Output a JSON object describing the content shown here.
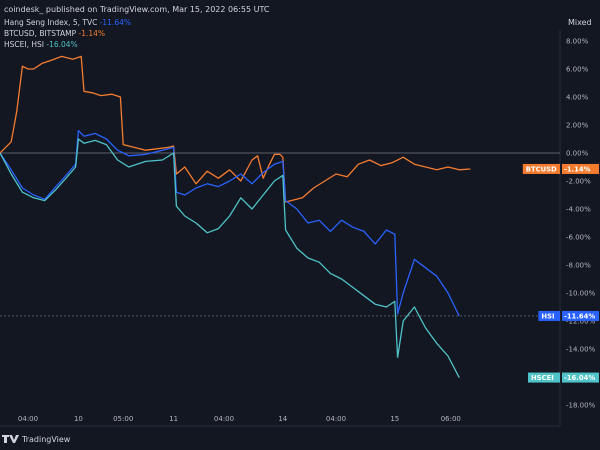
{
  "header": {
    "publisher_line": "coindesk_ published on TradingView.com, Mar 15, 2022 06:55 UTC",
    "scale_mode": "Mixed"
  },
  "branding": {
    "logo_text": "TradingView"
  },
  "colors": {
    "background": "#131722",
    "hsi": "#2962ff",
    "btc": "#f57c2f",
    "hscei": "#4fc3c9",
    "text": "#d1d4dc",
    "muted": "#b2b5be"
  },
  "chart_data": {
    "type": "line",
    "title": "",
    "ylabel_unit": "%",
    "ylim": [
      -18,
      9
    ],
    "y_ticks": [
      "8.00%",
      "6.00%",
      "4.00%",
      "2.00%",
      "0.00%",
      "-2.00%",
      "-4.00%",
      "-6.00%",
      "-8.00%",
      "-10.00%",
      "-12.00%",
      "-14.00%",
      "-16.00%",
      "-18.00%"
    ],
    "y_tick_values": [
      8,
      6,
      4,
      2,
      0,
      -2,
      -4,
      -6,
      -8,
      -10,
      -12,
      -14,
      -16,
      -18
    ],
    "x_ticks": [
      "04:00",
      "10",
      "05:00",
      "11",
      "04:00",
      "14",
      "04:00",
      "15",
      "06:00"
    ],
    "x_tick_positions": [
      0.05,
      0.14,
      0.22,
      0.31,
      0.4,
      0.505,
      0.6,
      0.705,
      0.805
    ],
    "legend": [
      {
        "name": "Hang Seng Index, 5, TVC",
        "value": "-11.64%",
        "color_key": "hsi"
      },
      {
        "name": "BTCUSD, BITSTAMP",
        "value": "-1.14%",
        "color_key": "btc"
      },
      {
        "name": "HSCEI, HSI",
        "value": "-16.04%",
        "color_key": "hscei"
      }
    ],
    "tags": [
      {
        "label": "BTCUSD",
        "value": "-1.14%",
        "y": -1.14,
        "color_key": "btc"
      },
      {
        "label": "HSI",
        "value": "-11.64%",
        "y": -11.64,
        "color_key": "hsi"
      },
      {
        "label": "HSCEI",
        "value": "-16.04%",
        "y": -16.04,
        "color_key": "hscei"
      }
    ],
    "series": [
      {
        "key": "btc",
        "x": [
          0,
          0.01,
          0.02,
          0.03,
          0.04,
          0.05,
          0.06,
          0.075,
          0.09,
          0.11,
          0.13,
          0.145,
          0.15,
          0.165,
          0.18,
          0.2,
          0.215,
          0.22,
          0.23,
          0.26,
          0.28,
          0.3,
          0.31,
          0.315,
          0.33,
          0.35,
          0.37,
          0.39,
          0.41,
          0.43,
          0.45,
          0.46,
          0.47,
          0.48,
          0.49,
          0.5,
          0.505,
          0.51,
          0.54,
          0.56,
          0.58,
          0.6,
          0.62,
          0.64,
          0.66,
          0.68,
          0.7,
          0.72,
          0.74,
          0.76,
          0.78,
          0.8,
          0.82,
          0.84
        ],
        "y": [
          0,
          0.4,
          0.8,
          3.0,
          6.2,
          6.0,
          6.0,
          6.4,
          6.6,
          6.9,
          6.7,
          6.9,
          4.4,
          4.3,
          4.1,
          4.2,
          4.0,
          0.6,
          0.5,
          0.2,
          0.3,
          0.4,
          0.5,
          -1.5,
          -1.0,
          -2.2,
          -1.3,
          -1.8,
          -1.2,
          -2.0,
          -0.5,
          -0.2,
          -1.8,
          -0.9,
          -0.1,
          -0.1,
          -0.3,
          -3.5,
          -3.2,
          -2.5,
          -2.0,
          -1.5,
          -1.7,
          -0.8,
          -0.5,
          -0.9,
          -0.7,
          -0.3,
          -0.8,
          -1.0,
          -1.2,
          -1.0,
          -1.2,
          -1.14
        ]
      },
      {
        "key": "hsi",
        "x": [
          0,
          0.02,
          0.04,
          0.06,
          0.08,
          0.1,
          0.12,
          0.135,
          0.14,
          0.15,
          0.17,
          0.19,
          0.21,
          0.23,
          0.26,
          0.29,
          0.31,
          0.315,
          0.33,
          0.35,
          0.37,
          0.39,
          0.41,
          0.43,
          0.45,
          0.47,
          0.49,
          0.505,
          0.51,
          0.53,
          0.55,
          0.57,
          0.59,
          0.61,
          0.63,
          0.65,
          0.67,
          0.69,
          0.705,
          0.71,
          0.72,
          0.74,
          0.76,
          0.78,
          0.8,
          0.82
        ],
        "y": [
          0,
          -1.2,
          -2.5,
          -3.0,
          -3.3,
          -2.4,
          -1.5,
          -0.8,
          1.6,
          1.2,
          1.4,
          1.0,
          0.2,
          -0.2,
          -0.1,
          0.2,
          0.4,
          -2.8,
          -3.0,
          -2.5,
          -2.2,
          -2.4,
          -2.0,
          -1.5,
          -2.2,
          -1.4,
          -0.8,
          -0.6,
          -3.4,
          -4.0,
          -5.0,
          -4.8,
          -5.6,
          -4.8,
          -5.3,
          -5.6,
          -6.5,
          -5.5,
          -5.8,
          -11.5,
          -10.0,
          -7.6,
          -8.2,
          -8.8,
          -10.0,
          -11.64
        ]
      },
      {
        "key": "hscei",
        "x": [
          0,
          0.02,
          0.04,
          0.06,
          0.08,
          0.1,
          0.12,
          0.135,
          0.14,
          0.15,
          0.17,
          0.19,
          0.21,
          0.23,
          0.26,
          0.29,
          0.31,
          0.315,
          0.33,
          0.35,
          0.37,
          0.39,
          0.41,
          0.43,
          0.45,
          0.47,
          0.49,
          0.505,
          0.51,
          0.53,
          0.55,
          0.57,
          0.59,
          0.61,
          0.63,
          0.65,
          0.67,
          0.69,
          0.705,
          0.71,
          0.72,
          0.74,
          0.76,
          0.78,
          0.8,
          0.82
        ],
        "y": [
          0,
          -1.5,
          -2.8,
          -3.2,
          -3.4,
          -2.6,
          -1.7,
          -1.0,
          1.0,
          0.7,
          0.9,
          0.6,
          -0.5,
          -1.0,
          -0.6,
          -0.5,
          0.0,
          -3.8,
          -4.5,
          -5.0,
          -5.7,
          -5.4,
          -4.5,
          -3.2,
          -4.0,
          -3.0,
          -2.0,
          -1.6,
          -5.5,
          -6.8,
          -7.5,
          -7.8,
          -8.6,
          -9.0,
          -9.6,
          -10.2,
          -10.8,
          -11.0,
          -10.6,
          -14.6,
          -12.0,
          -11.0,
          -12.5,
          -13.6,
          -14.5,
          -16.04
        ]
      }
    ]
  }
}
